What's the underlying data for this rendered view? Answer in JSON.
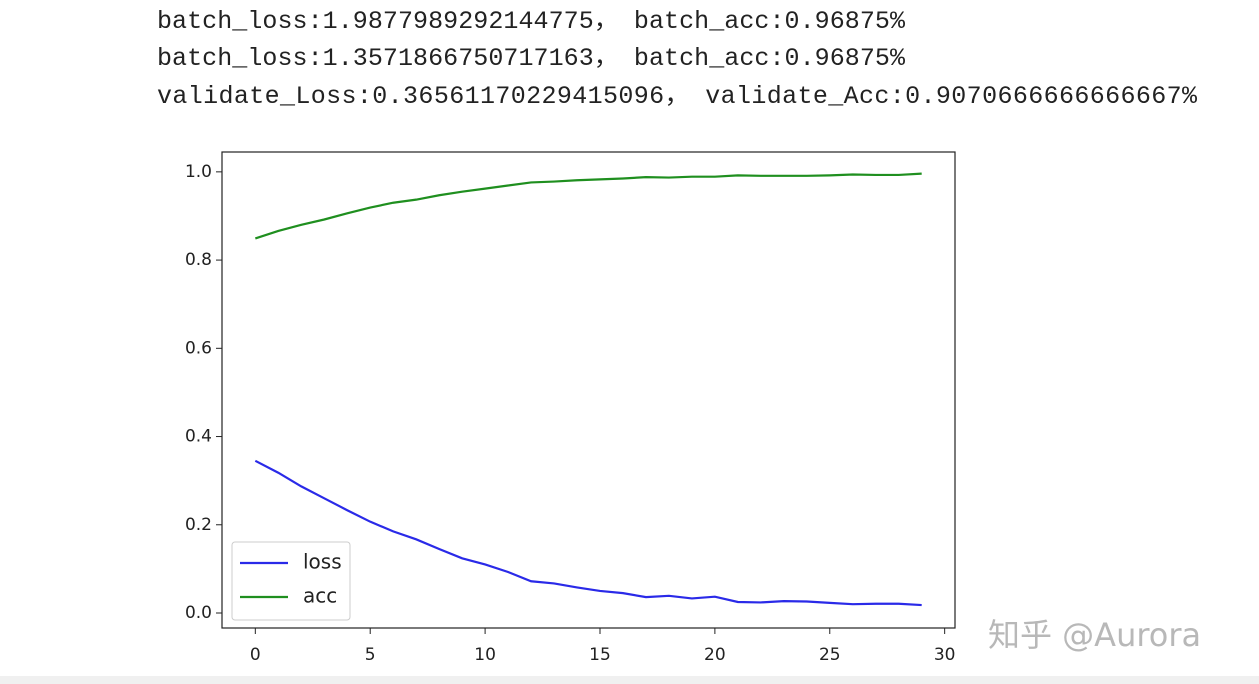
{
  "log_lines": [
    "batch_loss:1.9877989292144775， batch_acc:0.96875%",
    "batch_loss:1.3571866750717163， batch_acc:0.96875%",
    "validate_Loss:0.36561170229415096，  validate_Acc:0.9070666666666667%"
  ],
  "watermark": "知乎 @Aurora",
  "chart_data": {
    "type": "line",
    "x": [
      0,
      1,
      2,
      3,
      4,
      5,
      6,
      7,
      8,
      9,
      10,
      11,
      12,
      13,
      14,
      15,
      16,
      17,
      18,
      19,
      20,
      21,
      22,
      23,
      24,
      25,
      26,
      27,
      28,
      29
    ],
    "series": [
      {
        "name": "loss",
        "color": "#2a2ae8",
        "values": [
          0.345,
          0.318,
          0.287,
          0.26,
          0.233,
          0.207,
          0.185,
          0.167,
          0.145,
          0.124,
          0.11,
          0.093,
          0.072,
          0.067,
          0.058,
          0.05,
          0.045,
          0.036,
          0.039,
          0.033,
          0.037,
          0.025,
          0.024,
          0.027,
          0.026,
          0.023,
          0.02,
          0.021,
          0.021,
          0.018
        ]
      },
      {
        "name": "acc",
        "color": "#1f8f1f",
        "values": [
          0.849,
          0.866,
          0.88,
          0.892,
          0.906,
          0.919,
          0.93,
          0.937,
          0.947,
          0.955,
          0.962,
          0.969,
          0.976,
          0.978,
          0.981,
          0.983,
          0.985,
          0.988,
          0.987,
          0.989,
          0.989,
          0.992,
          0.991,
          0.991,
          0.991,
          0.992,
          0.994,
          0.993,
          0.993,
          0.996
        ]
      }
    ],
    "xlim": [
      -1.45,
      30.45
    ],
    "xticks": [
      0,
      5,
      10,
      15,
      20,
      25,
      30
    ],
    "ylim": [
      -0.034,
      1.045
    ],
    "yticks": [
      {
        "value": 0,
        "label": "0.0"
      },
      0.2,
      0.4,
      0.6,
      0.8,
      {
        "value": 1,
        "label": "1.0"
      }
    ],
    "legend": "lower left"
  }
}
